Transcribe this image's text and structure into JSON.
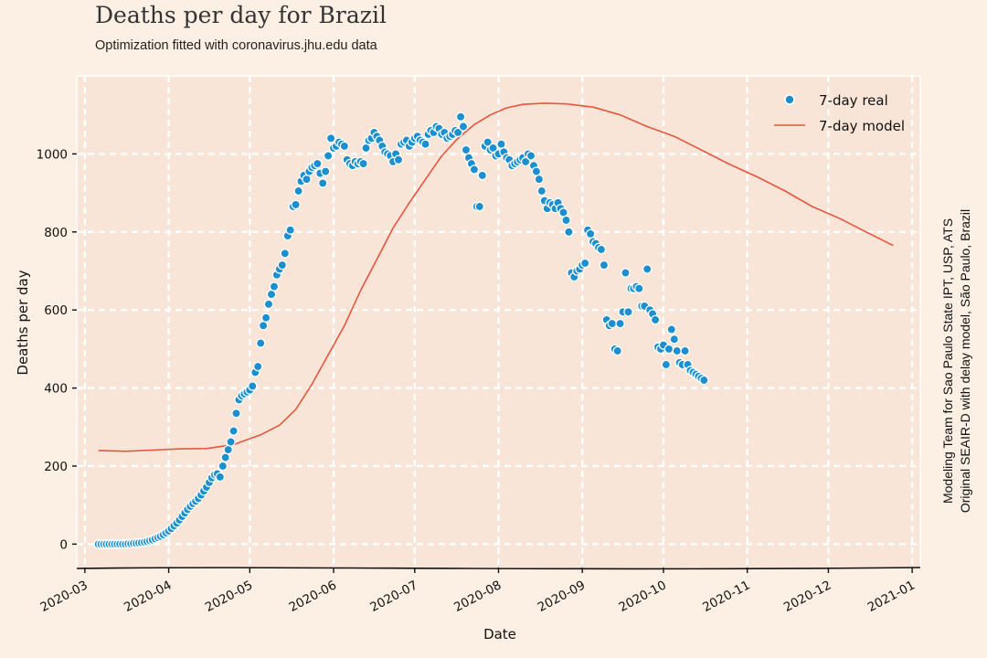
{
  "header": {
    "title": "Deaths per day for Brazil",
    "subtitle": "Optimization fitted with coronavirus.jhu.edu data"
  },
  "credits": {
    "line1": "Modeling Team for Sao Paulo State IPT, USP, ATS",
    "line2": "Original SEAIR-D with delay model, São Paulo, Brazil"
  },
  "colors": {
    "background": "#fcefe4",
    "plot_area": "#f8e5d8",
    "grid": "#ffffff",
    "real": "#1b8fd0",
    "model": "#e8553e"
  },
  "chart_data": {
    "type": "scatter",
    "title": "Deaths per day for Brazil",
    "subtitle": "Optimization fitted with coronavirus.jhu.edu data",
    "xlabel": "Date",
    "ylabel": "Deaths per day",
    "xlim": [
      "2020-02-27",
      "2021-01-04"
    ],
    "ylim": [
      -60,
      1200
    ],
    "x_ticks": [
      "2020-03",
      "2020-04",
      "2020-05",
      "2020-06",
      "2020-07",
      "2020-08",
      "2020-09",
      "2020-10",
      "2020-11",
      "2020-12",
      "2021-01"
    ],
    "y_ticks": [
      0,
      200,
      400,
      600,
      800,
      1000
    ],
    "grid": true,
    "legend_position": "top-right",
    "series": [
      {
        "name": "7-day real",
        "kind": "scatter",
        "points": [
          [
            "2020-03-06",
            0
          ],
          [
            "2020-03-07",
            0
          ],
          [
            "2020-03-08",
            0
          ],
          [
            "2020-03-09",
            0
          ],
          [
            "2020-03-10",
            0
          ],
          [
            "2020-03-11",
            0
          ],
          [
            "2020-03-12",
            0
          ],
          [
            "2020-03-13",
            0
          ],
          [
            "2020-03-14",
            0
          ],
          [
            "2020-03-15",
            0
          ],
          [
            "2020-03-16",
            0
          ],
          [
            "2020-03-17",
            1
          ],
          [
            "2020-03-18",
            1
          ],
          [
            "2020-03-19",
            2
          ],
          [
            "2020-03-20",
            2
          ],
          [
            "2020-03-21",
            3
          ],
          [
            "2020-03-22",
            4
          ],
          [
            "2020-03-23",
            5
          ],
          [
            "2020-03-24",
            7
          ],
          [
            "2020-03-25",
            9
          ],
          [
            "2020-03-26",
            11
          ],
          [
            "2020-03-27",
            14
          ],
          [
            "2020-03-28",
            17
          ],
          [
            "2020-03-29",
            20
          ],
          [
            "2020-03-30",
            24
          ],
          [
            "2020-03-31",
            29
          ],
          [
            "2020-04-01",
            34
          ],
          [
            "2020-04-02",
            40
          ],
          [
            "2020-04-03",
            47
          ],
          [
            "2020-04-04",
            54
          ],
          [
            "2020-04-05",
            62
          ],
          [
            "2020-04-06",
            71
          ],
          [
            "2020-04-07",
            80
          ],
          [
            "2020-04-08",
            89
          ],
          [
            "2020-04-09",
            97
          ],
          [
            "2020-04-10",
            104
          ],
          [
            "2020-04-11",
            110
          ],
          [
            "2020-04-12",
            117
          ],
          [
            "2020-04-13",
            126
          ],
          [
            "2020-04-14",
            136
          ],
          [
            "2020-04-15",
            146
          ],
          [
            "2020-04-16",
            158
          ],
          [
            "2020-04-17",
            170
          ],
          [
            "2020-04-18",
            178
          ],
          [
            "2020-04-19",
            180
          ],
          [
            "2020-04-20",
            172
          ],
          [
            "2020-04-21",
            200
          ],
          [
            "2020-04-22",
            222
          ],
          [
            "2020-04-23",
            242
          ],
          [
            "2020-04-24",
            262
          ],
          [
            "2020-04-25",
            290
          ],
          [
            "2020-04-26",
            335
          ],
          [
            "2020-04-27",
            370
          ],
          [
            "2020-04-28",
            380
          ],
          [
            "2020-04-29",
            385
          ],
          [
            "2020-04-30",
            390
          ],
          [
            "2020-05-01",
            395
          ],
          [
            "2020-05-02",
            405
          ],
          [
            "2020-05-03",
            440
          ],
          [
            "2020-05-04",
            455
          ],
          [
            "2020-05-05",
            515
          ],
          [
            "2020-05-06",
            560
          ],
          [
            "2020-05-07",
            580
          ],
          [
            "2020-05-08",
            615
          ],
          [
            "2020-05-09",
            640
          ],
          [
            "2020-05-10",
            660
          ],
          [
            "2020-05-11",
            690
          ],
          [
            "2020-05-12",
            705
          ],
          [
            "2020-05-13",
            715
          ],
          [
            "2020-05-14",
            745
          ],
          [
            "2020-05-15",
            790
          ],
          [
            "2020-05-16",
            805
          ],
          [
            "2020-05-17",
            865
          ],
          [
            "2020-05-18",
            870
          ],
          [
            "2020-05-19",
            905
          ],
          [
            "2020-05-20",
            930
          ],
          [
            "2020-05-21",
            945
          ],
          [
            "2020-05-22",
            935
          ],
          [
            "2020-05-23",
            955
          ],
          [
            "2020-05-24",
            965
          ],
          [
            "2020-05-25",
            970
          ],
          [
            "2020-05-26",
            975
          ],
          [
            "2020-05-27",
            950
          ],
          [
            "2020-05-28",
            925
          ],
          [
            "2020-05-29",
            955
          ],
          [
            "2020-05-30",
            995
          ],
          [
            "2020-05-31",
            1040
          ],
          [
            "2020-06-01",
            1015
          ],
          [
            "2020-06-02",
            1020
          ],
          [
            "2020-06-03",
            1030
          ],
          [
            "2020-06-04",
            1025
          ],
          [
            "2020-06-05",
            1020
          ],
          [
            "2020-06-06",
            985
          ],
          [
            "2020-06-07",
            975
          ],
          [
            "2020-06-08",
            970
          ],
          [
            "2020-06-09",
            980
          ],
          [
            "2020-06-10",
            975
          ],
          [
            "2020-06-11",
            980
          ],
          [
            "2020-06-12",
            975
          ],
          [
            "2020-06-13",
            1015
          ],
          [
            "2020-06-14",
            1035
          ],
          [
            "2020-06-15",
            1040
          ],
          [
            "2020-06-16",
            1055
          ],
          [
            "2020-06-17",
            1045
          ],
          [
            "2020-06-18",
            1035
          ],
          [
            "2020-06-19",
            1020
          ],
          [
            "2020-06-20",
            1005
          ],
          [
            "2020-06-21",
            1000
          ],
          [
            "2020-06-22",
            995
          ],
          [
            "2020-06-23",
            980
          ],
          [
            "2020-06-24",
            1000
          ],
          [
            "2020-06-25",
            985
          ],
          [
            "2020-06-26",
            1025
          ],
          [
            "2020-06-27",
            1030
          ],
          [
            "2020-06-28",
            1035
          ],
          [
            "2020-06-29",
            1020
          ],
          [
            "2020-06-30",
            1030
          ],
          [
            "2020-07-01",
            1040
          ],
          [
            "2020-07-02",
            1045
          ],
          [
            "2020-07-03",
            1035
          ],
          [
            "2020-07-04",
            1030
          ],
          [
            "2020-07-05",
            1025
          ],
          [
            "2020-07-06",
            1050
          ],
          [
            "2020-07-07",
            1060
          ],
          [
            "2020-07-08",
            1055
          ],
          [
            "2020-07-09",
            1070
          ],
          [
            "2020-07-10",
            1065
          ],
          [
            "2020-07-11",
            1050
          ],
          [
            "2020-07-12",
            1055
          ],
          [
            "2020-07-13",
            1040
          ],
          [
            "2020-07-14",
            1045
          ],
          [
            "2020-07-15",
            1050
          ],
          [
            "2020-07-16",
            1060
          ],
          [
            "2020-07-17",
            1055
          ],
          [
            "2020-07-18",
            1095
          ],
          [
            "2020-07-19",
            1070
          ],
          [
            "2020-07-20",
            1010
          ],
          [
            "2020-07-21",
            990
          ],
          [
            "2020-07-22",
            975
          ],
          [
            "2020-07-23",
            960
          ],
          [
            "2020-07-24",
            865
          ],
          [
            "2020-07-25",
            865
          ],
          [
            "2020-07-26",
            945
          ],
          [
            "2020-07-27",
            1020
          ],
          [
            "2020-07-28",
            1030
          ],
          [
            "2020-07-29",
            1010
          ],
          [
            "2020-07-30",
            1015
          ],
          [
            "2020-07-31",
            995
          ],
          [
            "2020-08-01",
            1000
          ],
          [
            "2020-08-02",
            1025
          ],
          [
            "2020-08-03",
            1005
          ],
          [
            "2020-08-04",
            990
          ],
          [
            "2020-08-05",
            985
          ],
          [
            "2020-08-06",
            970
          ],
          [
            "2020-08-07",
            975
          ],
          [
            "2020-08-08",
            980
          ],
          [
            "2020-08-09",
            985
          ],
          [
            "2020-08-10",
            990
          ],
          [
            "2020-08-11",
            980
          ],
          [
            "2020-08-12",
            1000
          ],
          [
            "2020-08-13",
            995
          ],
          [
            "2020-08-14",
            970
          ],
          [
            "2020-08-15",
            955
          ],
          [
            "2020-08-16",
            935
          ],
          [
            "2020-08-17",
            905
          ],
          [
            "2020-08-18",
            880
          ],
          [
            "2020-08-19",
            860
          ],
          [
            "2020-08-20",
            875
          ],
          [
            "2020-08-21",
            870
          ],
          [
            "2020-08-22",
            860
          ],
          [
            "2020-08-23",
            875
          ],
          [
            "2020-08-24",
            860
          ],
          [
            "2020-08-25",
            850
          ],
          [
            "2020-08-26",
            830
          ],
          [
            "2020-08-27",
            800
          ],
          [
            "2020-08-28",
            695
          ],
          [
            "2020-08-29",
            685
          ],
          [
            "2020-08-30",
            700
          ],
          [
            "2020-08-31",
            705
          ],
          [
            "2020-09-01",
            715
          ],
          [
            "2020-09-02",
            720
          ],
          [
            "2020-09-03",
            805
          ],
          [
            "2020-09-04",
            795
          ],
          [
            "2020-09-05",
            775
          ],
          [
            "2020-09-06",
            770
          ],
          [
            "2020-09-07",
            760
          ],
          [
            "2020-09-08",
            755
          ],
          [
            "2020-09-09",
            715
          ],
          [
            "2020-09-10",
            575
          ],
          [
            "2020-09-11",
            560
          ],
          [
            "2020-09-12",
            565
          ],
          [
            "2020-09-13",
            500
          ],
          [
            "2020-09-14",
            495
          ],
          [
            "2020-09-15",
            565
          ],
          [
            "2020-09-16",
            595
          ],
          [
            "2020-09-17",
            695
          ],
          [
            "2020-09-18",
            595
          ],
          [
            "2020-09-19",
            655
          ],
          [
            "2020-09-20",
            655
          ],
          [
            "2020-09-21",
            660
          ],
          [
            "2020-09-22",
            655
          ],
          [
            "2020-09-23",
            610
          ],
          [
            "2020-09-24",
            610
          ],
          [
            "2020-09-25",
            705
          ],
          [
            "2020-09-26",
            600
          ],
          [
            "2020-09-27",
            590
          ],
          [
            "2020-09-28",
            575
          ],
          [
            "2020-09-29",
            505
          ],
          [
            "2020-09-30",
            500
          ],
          [
            "2020-10-01",
            510
          ],
          [
            "2020-10-02",
            460
          ],
          [
            "2020-10-03",
            500
          ],
          [
            "2020-10-04",
            550
          ],
          [
            "2020-10-05",
            525
          ],
          [
            "2020-10-06",
            495
          ],
          [
            "2020-10-07",
            465
          ],
          [
            "2020-10-08",
            460
          ],
          [
            "2020-10-09",
            495
          ],
          [
            "2020-10-10",
            460
          ],
          [
            "2020-10-11",
            445
          ],
          [
            "2020-10-12",
            440
          ],
          [
            "2020-10-13",
            435
          ],
          [
            "2020-10-14",
            430
          ],
          [
            "2020-10-15",
            425
          ],
          [
            "2020-10-16",
            420
          ]
        ]
      },
      {
        "name": "7-day model",
        "kind": "line",
        "points": [
          [
            "2020-03-06",
            240
          ],
          [
            "2020-03-16",
            238
          ],
          [
            "2020-03-26",
            241
          ],
          [
            "2020-04-05",
            244
          ],
          [
            "2020-04-15",
            245
          ],
          [
            "2020-04-25",
            255
          ],
          [
            "2020-05-05",
            280
          ],
          [
            "2020-05-12",
            305
          ],
          [
            "2020-05-18",
            345
          ],
          [
            "2020-05-24",
            410
          ],
          [
            "2020-05-30",
            485
          ],
          [
            "2020-06-05",
            560
          ],
          [
            "2020-06-11",
            650
          ],
          [
            "2020-06-17",
            730
          ],
          [
            "2020-06-23",
            810
          ],
          [
            "2020-06-29",
            875
          ],
          [
            "2020-07-05",
            935
          ],
          [
            "2020-07-11",
            995
          ],
          [
            "2020-07-17",
            1040
          ],
          [
            "2020-07-23",
            1075
          ],
          [
            "2020-07-29",
            1100
          ],
          [
            "2020-08-04",
            1118
          ],
          [
            "2020-08-10",
            1127
          ],
          [
            "2020-08-18",
            1130
          ],
          [
            "2020-08-26",
            1128
          ],
          [
            "2020-09-05",
            1120
          ],
          [
            "2020-09-15",
            1100
          ],
          [
            "2020-09-25",
            1070
          ],
          [
            "2020-10-05",
            1045
          ],
          [
            "2020-10-15",
            1010
          ],
          [
            "2020-10-25",
            975
          ],
          [
            "2020-11-05",
            940
          ],
          [
            "2020-11-15",
            905
          ],
          [
            "2020-11-25",
            865
          ],
          [
            "2020-12-05",
            835
          ],
          [
            "2020-12-15",
            800
          ],
          [
            "2020-12-25",
            765
          ]
        ]
      }
    ]
  }
}
